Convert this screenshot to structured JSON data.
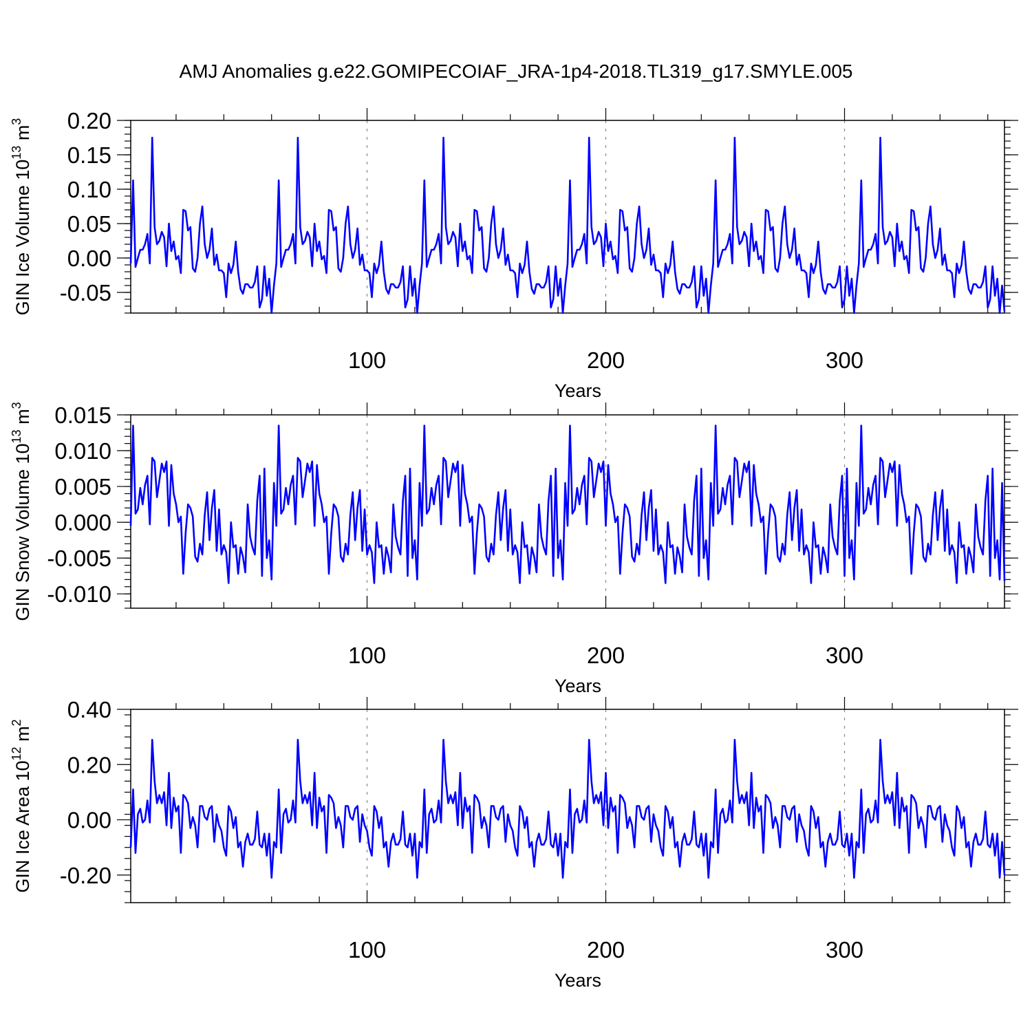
{
  "figure_title": "AMJ Anomalies g.e22.GOMIPECOIAF_JRA-1p4-2018.TL319_g17.SMYLE.005",
  "colors": {
    "series": "#0000ff",
    "axes": "#000000",
    "gridline": "#888888"
  },
  "chart_data": [
    {
      "type": "line",
      "title": "",
      "ylabel_main": "GIN Ice Volume 10",
      "ylabel_sup": "13",
      "ylabel_unit": " m",
      "ylabel_unit_sup": "3",
      "xlabel": "Years",
      "xlim": [
        1,
        367
      ],
      "ylim": [
        -0.08,
        0.2
      ],
      "yticks": [
        -0.05,
        0.0,
        0.05,
        0.1,
        0.15,
        0.2
      ],
      "ytick_labels": [
        "-0.05",
        "0.00",
        "0.05",
        "0.10",
        "0.15",
        "0.20"
      ],
      "xticks": [
        100,
        200,
        300
      ],
      "xtick_labels": [
        "100",
        "200",
        "300"
      ],
      "grid": "vertical dashed at major x ticks",
      "cycle": [
        -0.008,
        0.113,
        -0.013,
        0.0,
        0.012,
        0.012,
        0.02,
        0.035,
        -0.008,
        0.175,
        0.045,
        0.02,
        0.025,
        0.038,
        0.03,
        -0.012,
        0.05,
        0.01,
        0.024,
        -0.002,
        0.003,
        -0.022,
        0.07,
        0.068,
        0.04,
        0.045,
        -0.015,
        -0.02,
        0.0,
        0.05,
        0.075,
        0.02,
        0.0,
        0.012,
        0.043,
        -0.01,
        0.005,
        -0.018,
        -0.018,
        -0.022,
        -0.057,
        -0.008,
        -0.022,
        -0.01,
        0.024,
        -0.02,
        -0.045,
        -0.052,
        -0.038,
        -0.038,
        -0.043,
        -0.043,
        -0.035,
        -0.012,
        -0.072,
        -0.06,
        -0.012,
        -0.055,
        -0.03,
        -0.08,
        -0.04
      ],
      "series": [
        {
          "name": "GIN Ice Volume",
          "cycles": 6,
          "end_value": -0.078
        }
      ]
    },
    {
      "type": "line",
      "title": "",
      "ylabel_main": "GIN Snow Volume 10",
      "ylabel_sup": "13",
      "ylabel_unit": " m",
      "ylabel_unit_sup": "3",
      "xlabel": "Years",
      "xlim": [
        1,
        367
      ],
      "ylim": [
        -0.012,
        0.015
      ],
      "yticks": [
        -0.01,
        -0.005,
        0.0,
        0.005,
        0.01,
        0.015
      ],
      "ytick_labels": [
        "-0.010",
        "-0.005",
        "0.000",
        "0.005",
        "0.010",
        "0.015"
      ],
      "xticks": [
        100,
        200,
        300
      ],
      "xtick_labels": [
        "100",
        "200",
        "300"
      ],
      "grid": "vertical dashed at major x ticks",
      "cycle": [
        -0.0005,
        0.0135,
        0.0012,
        0.0018,
        0.0048,
        0.0025,
        0.0052,
        0.0065,
        -0.0003,
        0.009,
        0.0085,
        0.0035,
        0.0058,
        0.0082,
        0.007,
        0.0085,
        -0.0005,
        0.008,
        0.004,
        0.0025,
        0.0,
        0.0008,
        -0.0072,
        -0.0015,
        0.0025,
        0.002,
        0.0008,
        -0.0048,
        -0.0055,
        -0.003,
        -0.0045,
        0.001,
        0.0042,
        -0.0025,
        0.002,
        0.0045,
        -0.004,
        0.0018,
        -0.0045,
        -0.0032,
        -0.0042,
        -0.0085,
        0.0,
        -0.0035,
        -0.0032,
        -0.0072,
        -0.0035,
        -0.0048,
        -0.007,
        0.0025,
        -0.002,
        -0.0035,
        -0.0045,
        0.003,
        0.0065,
        -0.0075,
        0.0075,
        -0.005,
        -0.0025,
        -0.008,
        0.0055
      ],
      "series": [
        {
          "name": "GIN Snow Volume",
          "cycles": 6,
          "end_value": -0.0082
        }
      ]
    },
    {
      "type": "line",
      "title": "",
      "ylabel_main": "GIN Ice Area 10",
      "ylabel_sup": "12",
      "ylabel_unit": " m",
      "ylabel_unit_sup": "2",
      "xlabel": "Years",
      "xlim": [
        1,
        367
      ],
      "ylim": [
        -0.3,
        0.4
      ],
      "yticks": [
        -0.2,
        0.0,
        0.2,
        0.4
      ],
      "ytick_labels": [
        "-0.20",
        "0.00",
        "0.20",
        "0.40"
      ],
      "xticks": [
        100,
        200,
        300
      ],
      "xtick_labels": [
        "100",
        "200",
        "300"
      ],
      "grid": "vertical dashed at major x ticks",
      "cycle": [
        -0.1,
        0.11,
        -0.12,
        0.02,
        0.04,
        -0.01,
        0.0,
        0.07,
        -0.01,
        0.29,
        0.14,
        0.06,
        0.09,
        0.06,
        0.1,
        -0.02,
        0.17,
        -0.03,
        0.08,
        0.03,
        0.05,
        -0.12,
        0.09,
        0.08,
        0.06,
        -0.03,
        0.01,
        -0.02,
        -0.1,
        0.05,
        0.05,
        0.01,
        0.0,
        0.04,
        0.05,
        -0.08,
        0.02,
        -0.02,
        -0.04,
        -0.1,
        -0.13,
        0.05,
        0.03,
        -0.03,
        0.01,
        -0.1,
        -0.08,
        -0.17,
        -0.08,
        -0.05,
        -0.09,
        -0.09,
        -0.07,
        0.03,
        -0.09,
        -0.1,
        -0.05,
        -0.13,
        -0.05,
        -0.21,
        -0.08
      ],
      "series": [
        {
          "name": "GIN Ice Area",
          "cycles": 6,
          "end_value": -0.2
        }
      ]
    }
  ]
}
